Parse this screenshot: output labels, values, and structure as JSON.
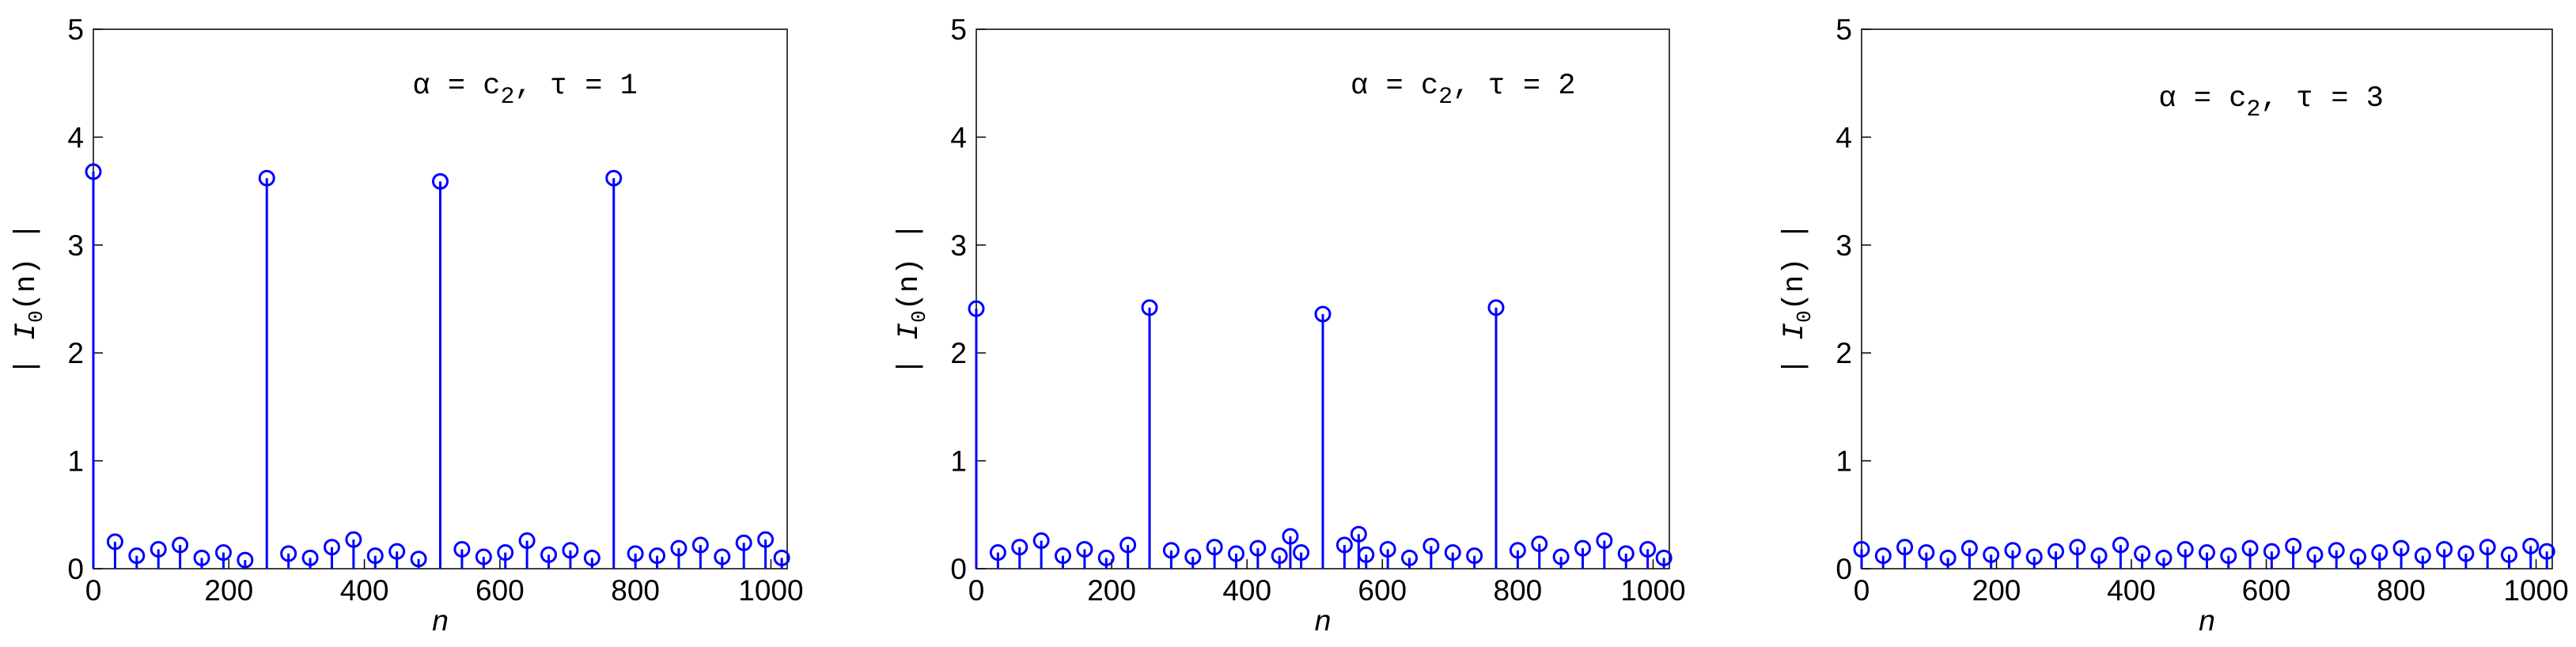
{
  "chart_data": [
    {
      "type": "stem",
      "annotation_text": "α = c",
      "annotation_subscript": "2",
      "annotation_tail": ",  τ = 1",
      "xlabel": "n",
      "ylabel": "|  I",
      "ylabel_subscript": "0",
      "ylabel_tail": "(n)  |",
      "xlim": [
        0,
        1024
      ],
      "ylim": [
        0,
        5
      ],
      "xticks": [
        0,
        200,
        400,
        600,
        800,
        1000
      ],
      "yticks": [
        0,
        1,
        2,
        3,
        4,
        5
      ],
      "series": [
        {
          "color": "#0000ff",
          "x": [
            0,
            32,
            64,
            96,
            128,
            160,
            192,
            224,
            256,
            288,
            320,
            352,
            384,
            416,
            448,
            480,
            512,
            544,
            576,
            608,
            640,
            672,
            704,
            736,
            768,
            800,
            832,
            864,
            896,
            928,
            960,
            992,
            1016
          ],
          "values": [
            3.68,
            0.25,
            0.12,
            0.18,
            0.22,
            0.1,
            0.15,
            0.08,
            3.62,
            0.14,
            0.1,
            0.2,
            0.27,
            0.12,
            0.16,
            0.09,
            3.59,
            0.18,
            0.11,
            0.15,
            0.26,
            0.13,
            0.17,
            0.1,
            3.62,
            0.14,
            0.12,
            0.19,
            0.22,
            0.11,
            0.24,
            0.27,
            0.1
          ]
        }
      ]
    },
    {
      "type": "stem",
      "annotation_text": "α = c",
      "annotation_subscript": "2",
      "annotation_tail": ",  τ = 2",
      "xlabel": "n",
      "ylabel": "|  I",
      "ylabel_subscript": "0",
      "ylabel_tail": "(n)  |",
      "xlim": [
        0,
        1024
      ],
      "ylim": [
        0,
        5
      ],
      "xticks": [
        0,
        200,
        400,
        600,
        800,
        1000
      ],
      "yticks": [
        0,
        1,
        2,
        3,
        4,
        5
      ],
      "series": [
        {
          "color": "#0000ff",
          "x": [
            0,
            32,
            64,
            96,
            128,
            160,
            192,
            224,
            256,
            288,
            320,
            352,
            384,
            416,
            448,
            464,
            480,
            512,
            544,
            565,
            576,
            608,
            640,
            672,
            704,
            736,
            768,
            800,
            832,
            864,
            896,
            928,
            960,
            992,
            1016
          ],
          "values": [
            2.41,
            0.15,
            0.2,
            0.26,
            0.12,
            0.18,
            0.1,
            0.22,
            2.42,
            0.17,
            0.11,
            0.2,
            0.14,
            0.19,
            0.12,
            0.3,
            0.15,
            2.36,
            0.22,
            0.32,
            0.13,
            0.18,
            0.1,
            0.21,
            0.15,
            0.12,
            2.42,
            0.17,
            0.23,
            0.11,
            0.19,
            0.26,
            0.14,
            0.18,
            0.1
          ]
        }
      ]
    },
    {
      "type": "stem",
      "annotation_text": "α = c",
      "annotation_subscript": "2",
      "annotation_tail": ",  τ = 3",
      "xlabel": "n",
      "ylabel": "|  I",
      "ylabel_subscript": "0",
      "ylabel_tail": "(n)  |",
      "xlim": [
        0,
        1024
      ],
      "ylim": [
        0,
        5
      ],
      "xticks": [
        0,
        200,
        400,
        600,
        800,
        1000
      ],
      "yticks": [
        0,
        1,
        2,
        3,
        4,
        5
      ],
      "series": [
        {
          "color": "#0000ff",
          "x": [
            0,
            32,
            64,
            96,
            128,
            160,
            192,
            224,
            256,
            288,
            320,
            352,
            384,
            416,
            448,
            480,
            512,
            544,
            576,
            608,
            640,
            672,
            704,
            736,
            768,
            800,
            832,
            864,
            896,
            928,
            960,
            992,
            1016
          ],
          "values": [
            0.18,
            0.12,
            0.2,
            0.15,
            0.1,
            0.19,
            0.13,
            0.17,
            0.11,
            0.16,
            0.2,
            0.12,
            0.22,
            0.14,
            0.1,
            0.18,
            0.15,
            0.12,
            0.19,
            0.16,
            0.21,
            0.13,
            0.17,
            0.11,
            0.15,
            0.19,
            0.12,
            0.18,
            0.14,
            0.2,
            0.13,
            0.21,
            0.16
          ]
        }
      ]
    }
  ]
}
